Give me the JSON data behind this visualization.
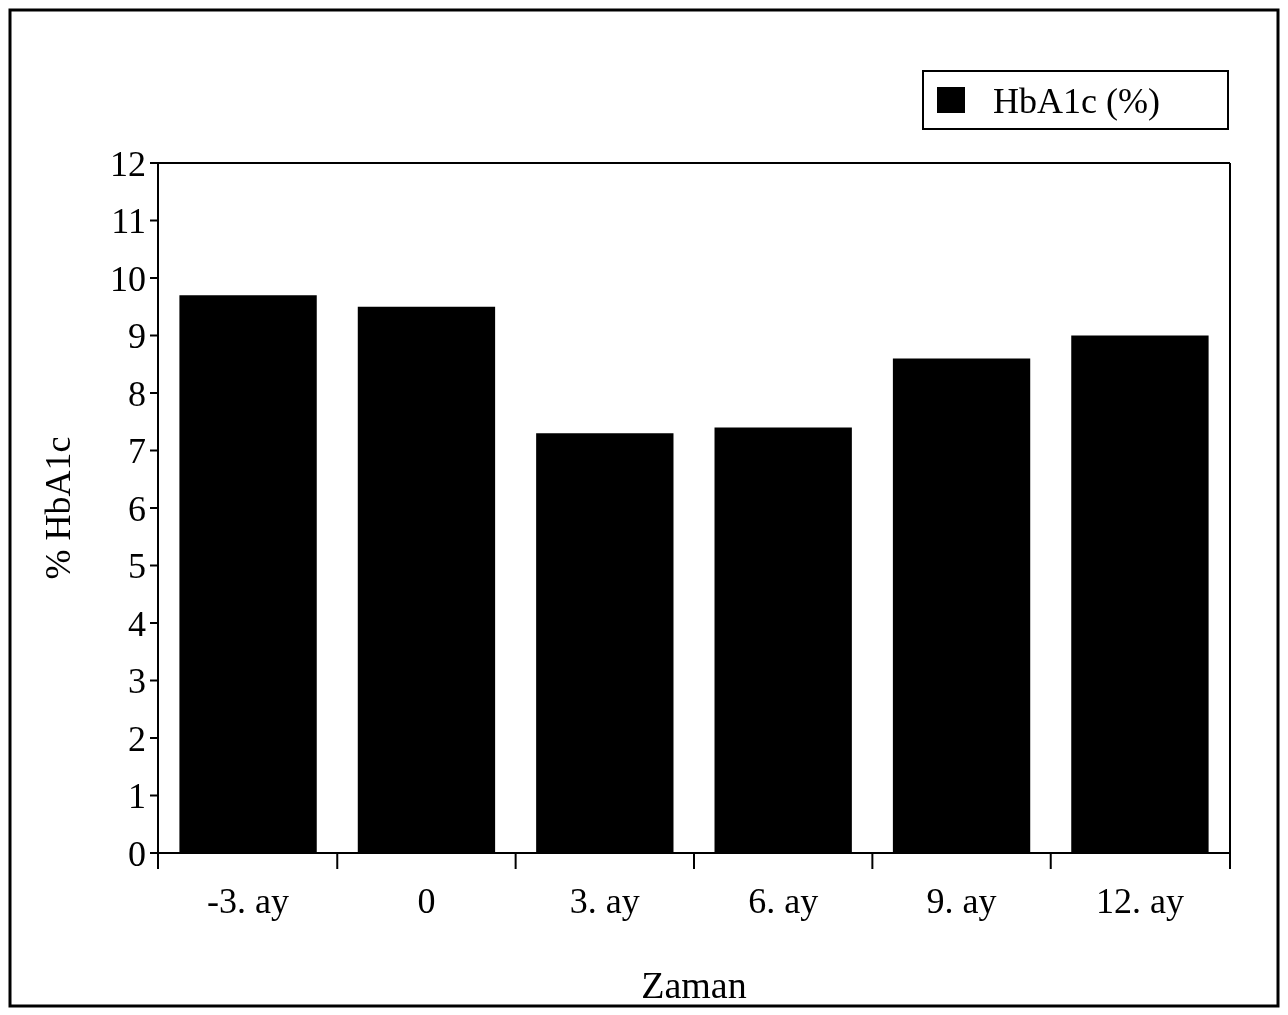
{
  "chart_data": {
    "type": "bar",
    "xlabel": "Zaman",
    "ylabel": "% HbA1c",
    "categories": [
      "-3. ay",
      "0",
      "3. ay",
      "6. ay",
      "9. ay",
      "12. ay"
    ],
    "series": [
      {
        "name": "HbA1c (%)",
        "color": "#000000",
        "values": [
          9.7,
          9.5,
          7.3,
          7.4,
          8.6,
          9.0
        ]
      }
    ],
    "ylim": [
      0,
      12
    ],
    "yticks": [
      0,
      1,
      2,
      3,
      4,
      5,
      6,
      7,
      8,
      9,
      10,
      11,
      12
    ],
    "grid": false,
    "legend": "top right"
  }
}
